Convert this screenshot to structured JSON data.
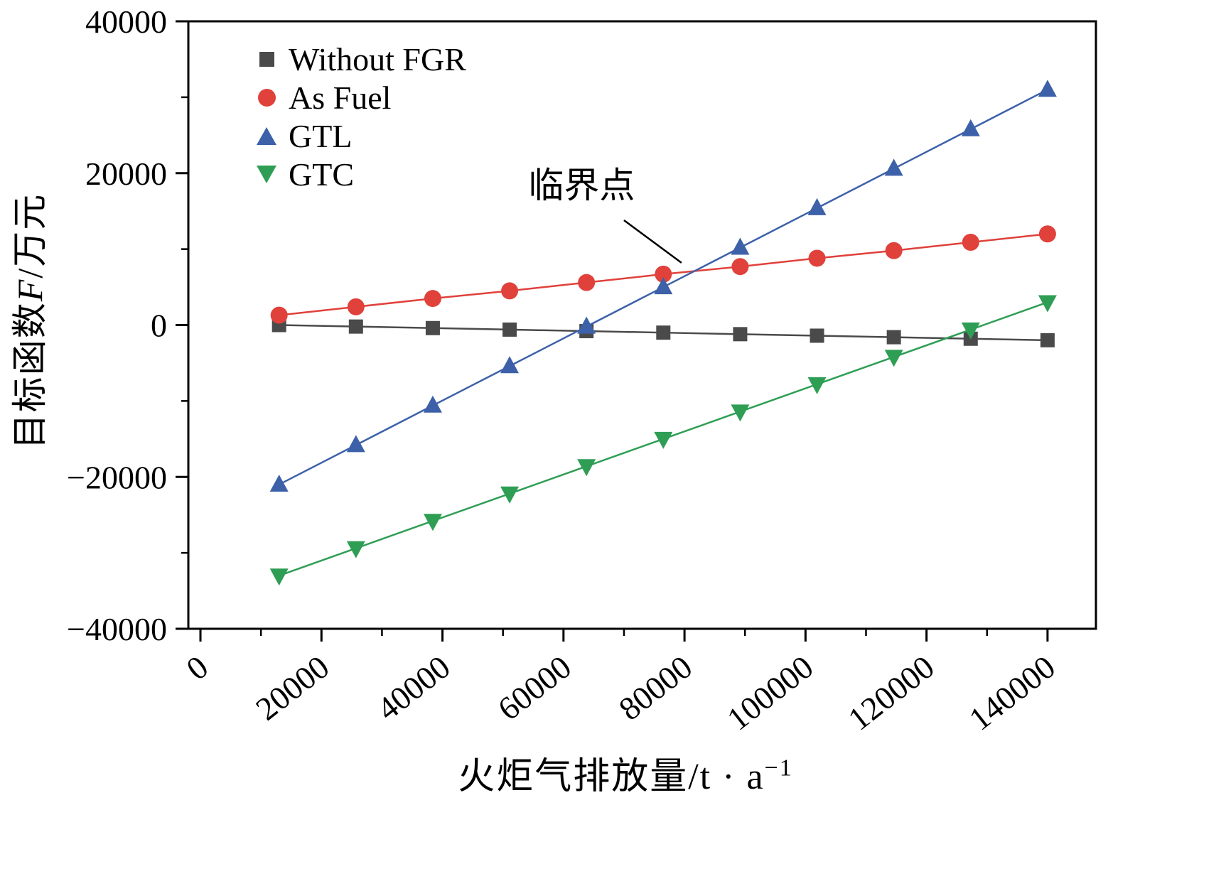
{
  "figure": {
    "background": "#ffffff",
    "axis_color": "#000000"
  },
  "chart_data": {
    "type": "line",
    "title": "",
    "xlabel": "火炬气排放量/t · a⁻¹",
    "xlabel_parts": {
      "prefix": "火炬气排放量/t · a",
      "superscript": "−1"
    },
    "ylabel": "目标函数F/万元",
    "ylabel_parts": {
      "prefix": "目标函数",
      "variable": "F",
      "suffix": "/万元"
    },
    "xlim": [
      -2000,
      148000
    ],
    "ylim": [
      -40000,
      40000
    ],
    "xticks": [
      0,
      20000,
      40000,
      60000,
      80000,
      100000,
      120000,
      140000
    ],
    "xticks_minor": [
      10000,
      30000,
      50000,
      70000,
      90000,
      110000,
      130000
    ],
    "yticks": [
      -40000,
      -20000,
      0,
      20000,
      40000
    ],
    "yticks_minor": [
      -30000,
      -10000,
      10000,
      30000
    ],
    "grid": false,
    "legend_position": "top-left-inside",
    "x": [
      13000,
      25700,
      38400,
      51100,
      63800,
      76500,
      89200,
      101900,
      114600,
      127300,
      140000
    ],
    "series": [
      {
        "id": "without-fgr",
        "name": "Without FGR",
        "marker": "square",
        "color": "#4a4a4a",
        "values": [
          0,
          -200,
          -400,
          -600,
          -800,
          -1000,
          -1200,
          -1400,
          -1600,
          -1800,
          -2000
        ]
      },
      {
        "id": "as-fuel",
        "name": "As Fuel",
        "marker": "circle",
        "color": "#e0413b",
        "values": [
          1300,
          2400,
          3500,
          4500,
          5600,
          6700,
          7700,
          8800,
          9800,
          10900,
          12000
        ]
      },
      {
        "id": "gtl",
        "name": "GTL",
        "marker": "triangle-up",
        "color": "#3d61a9",
        "values": [
          -21000,
          -15800,
          -10600,
          -5400,
          -200,
          5000,
          10200,
          15400,
          20600,
          25800,
          31000
        ]
      },
      {
        "id": "gtc",
        "name": "GTC",
        "marker": "triangle-down",
        "color": "#2f9e55",
        "values": [
          -33000,
          -29400,
          -25800,
          -22200,
          -18600,
          -15000,
          -11400,
          -7800,
          -4200,
          -600,
          3000
        ]
      }
    ],
    "annotation": {
      "text": "临界点",
      "text_xy": [
        63000,
        16800
      ],
      "line_from": [
        70000,
        13800
      ],
      "line_to": [
        79500,
        8200
      ]
    }
  }
}
